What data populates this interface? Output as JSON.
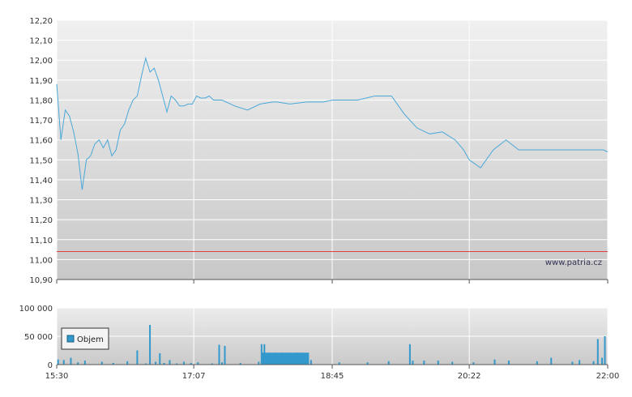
{
  "chart_data": [
    {
      "type": "line",
      "name": "price",
      "ylim": [
        10.9,
        12.2
      ],
      "y_ticks": [
        "12,20",
        "12,10",
        "12,00",
        "11,90",
        "11,80",
        "11,70",
        "11,60",
        "11,50",
        "11,40",
        "11,30",
        "11,20",
        "11,10",
        "11,00",
        "10,90"
      ],
      "y_tick_values": [
        12.2,
        12.1,
        12.0,
        11.9,
        11.8,
        11.7,
        11.6,
        11.5,
        11.4,
        11.3,
        11.2,
        11.1,
        11.0,
        10.9
      ],
      "reference_line": 11.04,
      "watermark": "www.patria.cz",
      "series": [
        {
          "x": [
            "15:30",
            "15:33",
            "15:36",
            "15:39",
            "15:42",
            "15:45",
            "15:48",
            "15:51",
            "15:54",
            "15:57",
            "16:00",
            "16:03",
            "16:06",
            "16:09",
            "16:12",
            "16:15",
            "16:18",
            "16:21",
            "16:24",
            "16:27",
            "16:30",
            "16:33",
            "16:36",
            "16:39",
            "16:42",
            "16:45",
            "16:48",
            "16:51",
            "16:54",
            "16:57",
            "17:00",
            "17:03",
            "17:06",
            "17:09",
            "17:12",
            "17:15",
            "17:18",
            "17:21",
            "17:27",
            "17:36",
            "17:45",
            "17:54",
            "18:03",
            "18:06",
            "18:15",
            "18:27",
            "18:39",
            "18:45",
            "18:48",
            "18:54",
            "19:03",
            "19:15",
            "19:27",
            "19:36",
            "19:45",
            "19:54",
            "20:03",
            "20:12",
            "20:18",
            "20:22",
            "20:30",
            "20:39",
            "20:48",
            "20:57",
            "21:03",
            "21:06",
            "21:09",
            "21:12",
            "21:15",
            "21:21",
            "21:27",
            "21:33",
            "21:36",
            "21:39",
            "21:42",
            "21:45",
            "21:48",
            "21:51",
            "21:54",
            "21:57",
            "22:00"
          ],
          "values": [
            11.88,
            11.6,
            11.75,
            11.72,
            11.64,
            11.53,
            11.35,
            11.5,
            11.52,
            11.58,
            11.6,
            11.56,
            11.6,
            11.52,
            11.55,
            11.65,
            11.68,
            11.75,
            11.8,
            11.82,
            11.92,
            12.01,
            11.94,
            11.96,
            11.9,
            11.82,
            11.74,
            11.82,
            11.8,
            11.77,
            11.77,
            11.78,
            11.78,
            11.82,
            11.81,
            11.81,
            11.82,
            11.8,
            11.8,
            11.77,
            11.75,
            11.78,
            11.79,
            11.79,
            11.78,
            11.79,
            11.79,
            11.8,
            11.8,
            11.8,
            11.8,
            11.82,
            11.82,
            11.73,
            11.66,
            11.63,
            11.64,
            11.6,
            11.55,
            11.5,
            11.46,
            11.55,
            11.6,
            11.55,
            11.55,
            11.55,
            11.55,
            11.55,
            11.55,
            11.55,
            11.55,
            11.55,
            11.55,
            11.55,
            11.55,
            11.55,
            11.55,
            11.55,
            11.55,
            11.55,
            11.54
          ]
        }
      ]
    },
    {
      "type": "bar",
      "name": "volume",
      "ylim": [
        0,
        100000
      ],
      "y_ticks": [
        "100 000",
        "50 000",
        "0"
      ],
      "y_tick_values": [
        100000,
        50000,
        0
      ],
      "x_ticks": [
        "15:30",
        "17:07",
        "18:45",
        "20:22",
        "22:00"
      ],
      "legend": [
        "Objem"
      ],
      "series": [
        {
          "name": "Objem",
          "x": [
            "15:31",
            "15:35",
            "15:40",
            "15:45",
            "15:50",
            "16:02",
            "16:10",
            "16:20",
            "16:27",
            "16:33",
            "16:36",
            "16:40",
            "16:43",
            "16:46",
            "16:50",
            "16:55",
            "17:00",
            "17:05",
            "17:10",
            "17:20",
            "17:25",
            "17:27",
            "17:29",
            "17:40",
            "17:53",
            "17:55",
            "17:57",
            "18:00",
            "18:05",
            "18:10",
            "18:15",
            "18:20",
            "18:24",
            "18:28",
            "18:30",
            "18:50",
            "19:10",
            "19:25",
            "19:40",
            "19:42",
            "19:50",
            "20:00",
            "20:10",
            "20:25",
            "20:40",
            "20:50",
            "21:10",
            "21:20",
            "21:35",
            "21:40",
            "21:50",
            "21:53",
            "21:56",
            "21:58"
          ],
          "values": [
            9000,
            8000,
            12000,
            4000,
            7000,
            5000,
            3000,
            6000,
            25000,
            2000,
            70000,
            5000,
            20000,
            3000,
            8000,
            2000,
            5000,
            3000,
            4000,
            2000,
            35000,
            4000,
            33000,
            3000,
            5000,
            36000,
            36000,
            21000,
            21000,
            21000,
            21000,
            21000,
            21000,
            21000,
            8000,
            4000,
            4000,
            6000,
            36000,
            7000,
            7000,
            7000,
            5000,
            4000,
            9000,
            7000,
            6000,
            12000,
            5000,
            8000,
            6000,
            45000,
            12000,
            50000
          ]
        }
      ]
    }
  ]
}
